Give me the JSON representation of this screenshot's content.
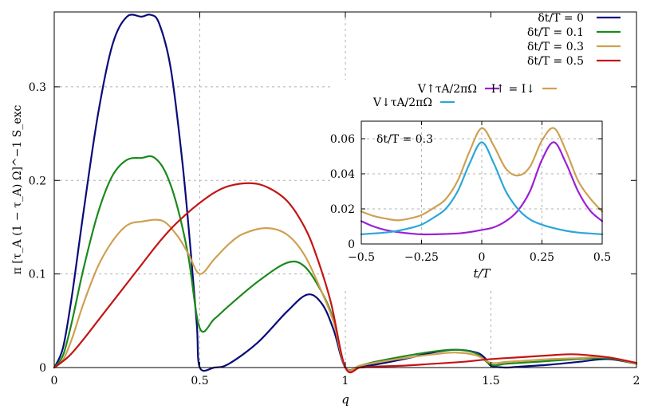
{
  "chart_data": [
    {
      "type": "line",
      "name": "main",
      "xlabel": "q",
      "ylabel": "π [τ_A (1 − τ_A) Ω]^−1 S_exc",
      "xlim": [
        0,
        2
      ],
      "ylim": [
        0,
        0.38
      ],
      "xticks": [
        0,
        0.5,
        1,
        1.5,
        2
      ],
      "xtick_labels": [
        "0",
        "0.5",
        "1",
        "1.5",
        "2"
      ],
      "yticks": [
        0,
        0.1,
        0.2,
        0.3
      ],
      "ytick_labels": [
        "0",
        "0.1",
        "0.2",
        "0.3"
      ],
      "grid": true,
      "legend_position": "top-right",
      "series": [
        {
          "name": "δt/T = 0",
          "color": "#0a0a7a",
          "x": [
            0,
            0.03,
            0.06,
            0.1,
            0.15,
            0.2,
            0.25,
            0.3,
            0.33,
            0.36,
            0.4,
            0.44,
            0.47,
            0.49,
            0.5,
            0.55,
            0.6,
            0.7,
            0.8,
            0.87,
            0.92,
            0.96,
            1.0,
            1.05,
            1.1,
            1.2,
            1.3,
            1.38,
            1.45,
            1.48,
            1.5,
            1.55,
            1.6,
            1.7,
            1.8,
            1.9,
            2.0
          ],
          "y": [
            0,
            0.021,
            0.075,
            0.165,
            0.27,
            0.345,
            0.375,
            0.375,
            0.377,
            0.368,
            0.32,
            0.22,
            0.12,
            0.045,
            0.0,
            0.0,
            0.004,
            0.027,
            0.06,
            0.078,
            0.068,
            0.04,
            0.0,
            0.001,
            0.003,
            0.009,
            0.016,
            0.019,
            0.016,
            0.01,
            0.002,
            0.0,
            0.001,
            0.003,
            0.006,
            0.009,
            0.004
          ]
        },
        {
          "name": "δt/T = 0.1",
          "color": "#1a8a1a",
          "x": [
            0,
            0.03,
            0.06,
            0.1,
            0.15,
            0.2,
            0.25,
            0.3,
            0.34,
            0.38,
            0.42,
            0.46,
            0.5,
            0.55,
            0.6,
            0.7,
            0.8,
            0.86,
            0.92,
            0.96,
            1.0,
            1.05,
            1.1,
            1.2,
            1.3,
            1.38,
            1.45,
            1.5,
            1.55,
            1.6,
            1.7,
            1.8,
            1.9,
            2.0
          ],
          "y": [
            0,
            0.013,
            0.048,
            0.105,
            0.165,
            0.205,
            0.222,
            0.224,
            0.225,
            0.21,
            0.175,
            0.12,
            0.042,
            0.052,
            0.066,
            0.092,
            0.112,
            0.108,
            0.08,
            0.05,
            0.0,
            0.002,
            0.006,
            0.012,
            0.017,
            0.019,
            0.015,
            0.003,
            0.004,
            0.005,
            0.007,
            0.009,
            0.01,
            0.004
          ]
        },
        {
          "name": "δt/T = 0.3",
          "color": "#cfa052",
          "x": [
            0,
            0.03,
            0.06,
            0.1,
            0.15,
            0.2,
            0.25,
            0.3,
            0.37,
            0.42,
            0.46,
            0.5,
            0.55,
            0.6,
            0.65,
            0.73,
            0.8,
            0.86,
            0.92,
            0.96,
            1.0,
            1.05,
            1.1,
            1.2,
            1.3,
            1.38,
            1.45,
            1.5,
            1.55,
            1.6,
            1.7,
            1.8,
            1.9,
            2.0
          ],
          "y": [
            0,
            0.008,
            0.03,
            0.068,
            0.108,
            0.135,
            0.152,
            0.156,
            0.157,
            0.142,
            0.122,
            0.1,
            0.116,
            0.132,
            0.143,
            0.149,
            0.142,
            0.12,
            0.08,
            0.048,
            0.0,
            0.002,
            0.005,
            0.01,
            0.014,
            0.016,
            0.013,
            0.005,
            0.006,
            0.007,
            0.009,
            0.01,
            0.011,
            0.004
          ]
        },
        {
          "name": "δt/T = 0.5",
          "color": "#c41414",
          "x": [
            0,
            0.05,
            0.1,
            0.15,
            0.2,
            0.25,
            0.3,
            0.35,
            0.4,
            0.45,
            0.5,
            0.55,
            0.6,
            0.67,
            0.73,
            0.8,
            0.86,
            0.9,
            0.95,
            1.0,
            1.05,
            1.1,
            1.2,
            1.3,
            1.4,
            1.5,
            1.6,
            1.7,
            1.75,
            1.8,
            1.9,
            2.0
          ],
          "y": [
            0,
            0.012,
            0.03,
            0.05,
            0.07,
            0.09,
            0.11,
            0.13,
            0.148,
            0.163,
            0.176,
            0.187,
            0.194,
            0.197,
            0.193,
            0.178,
            0.15,
            0.12,
            0.07,
            0.0,
            0.0,
            0.001,
            0.002,
            0.004,
            0.006,
            0.009,
            0.011,
            0.013,
            0.014,
            0.014,
            0.011,
            0.005
          ]
        }
      ]
    },
    {
      "type": "line",
      "name": "inset",
      "xlabel": "t/T",
      "ylabel": "",
      "xlim": [
        -0.5,
        0.5
      ],
      "ylim": [
        0,
        0.07
      ],
      "xticks": [
        -0.5,
        -0.25,
        0,
        0.25,
        0.5
      ],
      "xtick_labels": [
        "−0.5",
        "−0.25",
        "0",
        "0.25",
        "0.5"
      ],
      "yticks": [
        0,
        0.02,
        0.04,
        0.06
      ],
      "ytick_labels": [
        "0",
        "0.02",
        "0.04",
        "0.06"
      ],
      "grid": true,
      "annotation": "δt/T = 0.3",
      "legend_position": "above",
      "series": [
        {
          "name": "V↑τA/2πΩ",
          "color": "#9b20d6",
          "x": [
            -0.5,
            -0.45,
            -0.4,
            -0.35,
            -0.3,
            -0.25,
            -0.2,
            -0.15,
            -0.1,
            -0.05,
            0,
            0.05,
            0.1,
            0.15,
            0.2,
            0.25,
            0.3,
            0.35,
            0.4,
            0.45,
            0.5
          ],
          "y": [
            0.013,
            0.01,
            0.008,
            0.0068,
            0.006,
            0.0055,
            0.0055,
            0.0057,
            0.006,
            0.0068,
            0.008,
            0.0095,
            0.013,
            0.019,
            0.03,
            0.048,
            0.058,
            0.046,
            0.03,
            0.019,
            0.013
          ]
        },
        {
          "name": "V↓τA/2πΩ",
          "color": "#2aa7d8",
          "x": [
            -0.5,
            -0.45,
            -0.4,
            -0.35,
            -0.3,
            -0.25,
            -0.2,
            -0.15,
            -0.1,
            -0.05,
            0,
            0.05,
            0.1,
            0.15,
            0.2,
            0.25,
            0.3,
            0.35,
            0.4,
            0.45,
            0.5
          ],
          "y": [
            0.0055,
            0.006,
            0.0065,
            0.0075,
            0.009,
            0.011,
            0.015,
            0.02,
            0.03,
            0.046,
            0.058,
            0.046,
            0.03,
            0.02,
            0.014,
            0.011,
            0.009,
            0.0075,
            0.0065,
            0.006,
            0.0055
          ]
        },
        {
          "name": "I↑ = I↓",
          "color": "#cfa052",
          "x": [
            -0.5,
            -0.45,
            -0.4,
            -0.35,
            -0.3,
            -0.25,
            -0.2,
            -0.15,
            -0.1,
            -0.05,
            0,
            0.05,
            0.1,
            0.15,
            0.2,
            0.25,
            0.3,
            0.35,
            0.4,
            0.45,
            0.5
          ],
          "y": [
            0.0185,
            0.016,
            0.0145,
            0.0135,
            0.0145,
            0.0165,
            0.0205,
            0.0255,
            0.036,
            0.053,
            0.066,
            0.056,
            0.043,
            0.039,
            0.044,
            0.059,
            0.066,
            0.053,
            0.036,
            0.026,
            0.0185
          ]
        }
      ]
    }
  ]
}
